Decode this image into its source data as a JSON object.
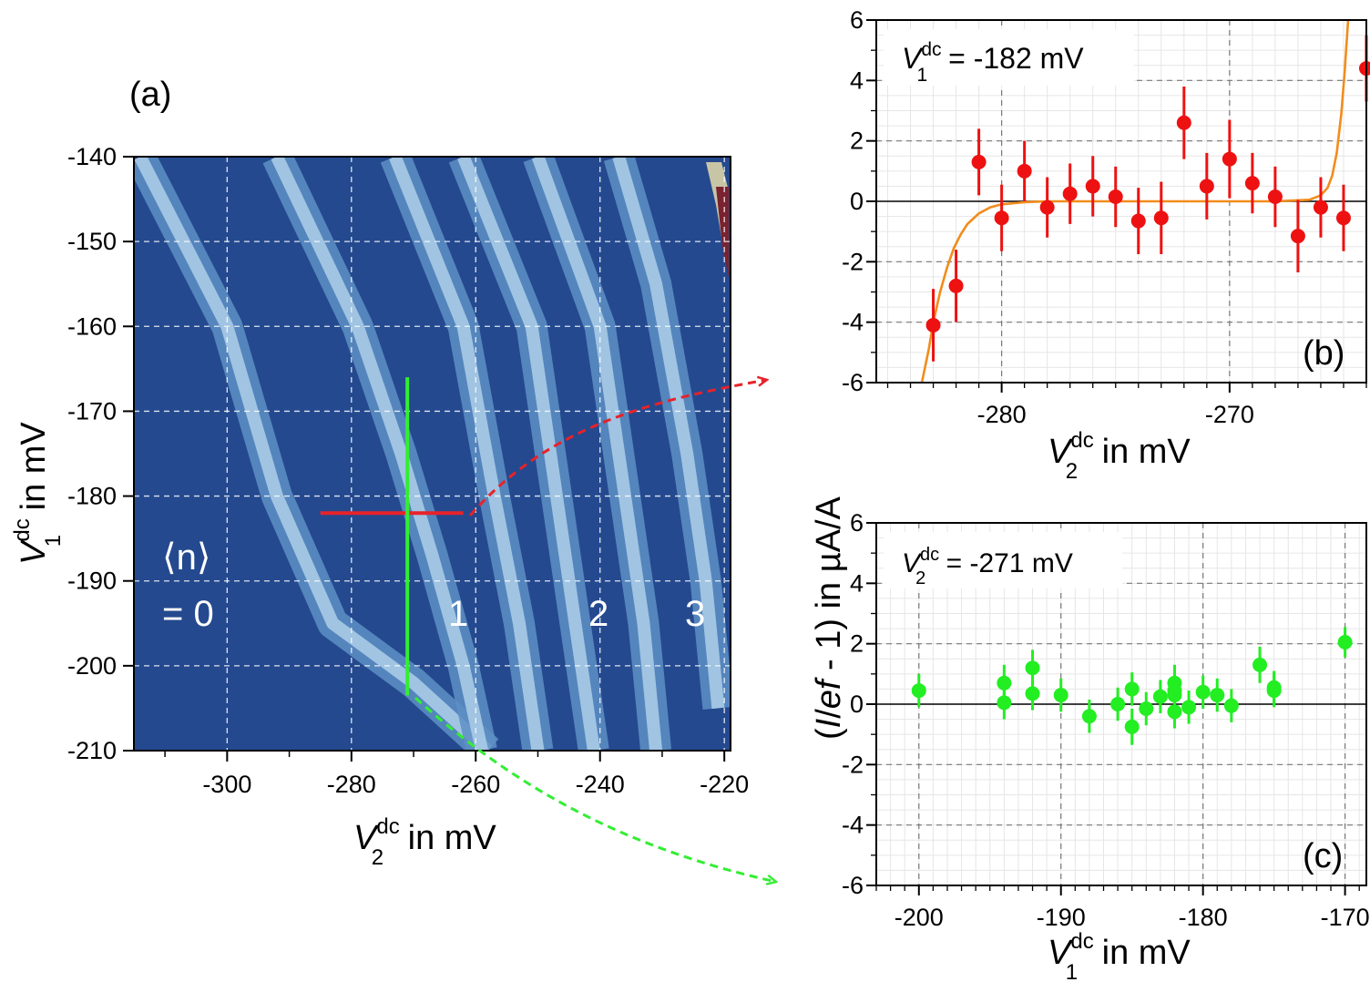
{
  "colors": {
    "map_background": "#24498f",
    "band_light": "#a9cbe6",
    "band_mid": "#5e8fc6",
    "hot_corner": "#7a2230",
    "red_cut": "#e8222a",
    "green_cut": "#33ee33",
    "red_points": "#ee1111",
    "green_points": "#22ee22",
    "fit_line": "#f28c1c"
  },
  "chart_data": [
    {
      "id": "a",
      "type": "heatmap",
      "panel_label": "(a)",
      "xlabel_main": "V",
      "xlabel_sup": "dc",
      "xlabel_sub": "2",
      "xlabel_unit": " in mV",
      "ylabel_main": "V",
      "ylabel_sup": "dc",
      "ylabel_sub": "1",
      "ylabel_unit": " in mV",
      "xlim": [
        -315,
        -219
      ],
      "ylim": [
        -210,
        -140
      ],
      "xticks": [
        -300,
        -280,
        -260,
        -240,
        -220
      ],
      "xtick_labels": [
        "-300",
        "-280",
        "-260",
        "-240",
        "-220"
      ],
      "yticks": [
        -140,
        -150,
        -160,
        -170,
        -180,
        -190,
        -200,
        -210
      ],
      "ytick_labels": [
        "-140",
        "-150",
        "-160",
        "-170",
        "-180",
        "-190",
        "-200",
        "-210"
      ],
      "grid": true,
      "bands": [
        {
          "points": [
            [
              -314,
              -140
            ],
            [
              -300,
              -160
            ],
            [
              -292,
              -180
            ],
            [
              -283,
              -195
            ],
            [
              -270,
              -202
            ],
            [
              -258,
              -210
            ]
          ]
        },
        {
          "points": [
            [
              -292,
              -140
            ],
            [
              -279,
              -160
            ],
            [
              -272,
              -175
            ],
            [
              -267,
              -187
            ],
            [
              -262,
              -200
            ],
            [
              -259,
              -210
            ]
          ]
        },
        {
          "points": [
            [
              -273,
              -140
            ],
            [
              -262,
              -160
            ],
            [
              -257,
              -180
            ],
            [
              -253,
              -195
            ],
            [
              -250,
              -210
            ]
          ]
        },
        {
          "points": [
            [
              -262,
              -140
            ],
            [
              -251,
              -160
            ],
            [
              -247,
              -180
            ],
            [
              -244,
              -195
            ],
            [
              -241,
              -210
            ]
          ]
        },
        {
          "points": [
            [
              -250,
              -140
            ],
            [
              -240,
              -160
            ],
            [
              -236,
              -180
            ],
            [
              -233,
              -195
            ],
            [
              -231,
              -210
            ]
          ]
        },
        {
          "points": [
            [
              -237,
              -140
            ],
            [
              -231,
              -155
            ],
            [
              -226,
              -175
            ],
            [
              -223,
              -190
            ],
            [
              -221,
              -205
            ]
          ]
        }
      ],
      "annotations": {
        "n_bracket": "⟨n⟩",
        "n_equals": "= 0",
        "n1": "1",
        "n2": "2",
        "n3": "3"
      },
      "cut_red": {
        "x": [
          -285,
          -262
        ],
        "y": -182
      },
      "cut_green": {
        "x": -271,
        "y": [
          -166,
          -203.5
        ]
      }
    },
    {
      "id": "b",
      "type": "scatter",
      "panel_label": "(b)",
      "legend_main": "V",
      "legend_sup": "dc",
      "legend_sub": "1",
      "legend_value": " = -182 mV",
      "xlabel_main": "V",
      "xlabel_sup": "dc",
      "xlabel_sub": "2",
      "xlabel_unit": " in mV",
      "xlim": [
        -285.5,
        -264
      ],
      "ylim": [
        -6,
        6
      ],
      "xticks": [
        -280,
        -270
      ],
      "xtick_labels": [
        "-280",
        "-270"
      ],
      "yticks": [
        -6,
        -4,
        -2,
        0,
        2,
        4,
        6
      ],
      "ytick_labels": [
        "-6",
        "-4",
        "-2",
        "0",
        "2",
        "4",
        "6"
      ],
      "grid": true,
      "x": [
        -283,
        -282,
        -281,
        -280,
        -279,
        -278,
        -277,
        -276,
        -275,
        -274,
        -273,
        -272,
        -271,
        -270,
        -269,
        -268,
        -267,
        -266,
        -265,
        -264
      ],
      "y": [
        -4.1,
        -2.8,
        1.3,
        -0.55,
        1.0,
        -0.2,
        0.25,
        0.5,
        0.15,
        -0.65,
        -0.55,
        2.6,
        0.5,
        1.4,
        0.6,
        0.15,
        -1.15,
        -0.2,
        -0.55,
        4.4
      ],
      "yerr": [
        1.2,
        1.2,
        1.1,
        1.1,
        1.0,
        1.0,
        1.0,
        1.0,
        1.0,
        1.1,
        1.2,
        1.2,
        1.1,
        1.3,
        1.0,
        1.0,
        1.2,
        1.0,
        1.1,
        1.1
      ],
      "fit_curve": {
        "x": [
          -283.5,
          -283.2,
          -283.0,
          -282.7,
          -282.4,
          -282.1,
          -281.8,
          -281.5,
          -281.0,
          -280.5,
          -280.0,
          -279.0,
          -278.0,
          -276.0,
          -272.0,
          -268.0,
          -266.5,
          -266.0,
          -265.7,
          -265.5,
          -265.3,
          -265.1,
          -264.95,
          -264.8
        ],
        "y": [
          -6.0,
          -4.9,
          -4.0,
          -3.0,
          -2.2,
          -1.55,
          -1.1,
          -0.75,
          -0.4,
          -0.2,
          -0.1,
          -0.03,
          0.0,
          0.0,
          0.0,
          0.0,
          0.05,
          0.2,
          0.45,
          0.85,
          1.6,
          2.9,
          4.3,
          6.0
        ]
      }
    },
    {
      "id": "c",
      "type": "scatter",
      "panel_label": "(c)",
      "legend_main": "V",
      "legend_sup": "dc",
      "legend_sub": "2",
      "legend_value": " = -271 mV",
      "xlabel_main": "V",
      "xlabel_sup": "dc",
      "xlabel_sub": "1",
      "xlabel_unit": " in mV",
      "xlim": [
        -203,
        -168.5
      ],
      "ylim": [
        -6,
        6
      ],
      "xticks": [
        -200,
        -190,
        -180,
        -170
      ],
      "xtick_labels": [
        "-200",
        "-190",
        "-180",
        "-170"
      ],
      "yticks": [
        -6,
        -4,
        -2,
        0,
        2,
        4,
        6
      ],
      "ytick_labels": [
        "-6",
        "-4",
        "-2",
        "0",
        "2",
        "4",
        "6"
      ],
      "grid": true,
      "x": [
        -200,
        -194,
        -194,
        -192,
        -192,
        -190,
        -188,
        -186,
        -185,
        -185,
        -184,
        -183,
        -182,
        -182,
        -182,
        -182,
        -181,
        -180,
        -179,
        -178,
        -176,
        -175,
        -175,
        -170
      ],
      "y": [
        0.45,
        0.7,
        0.05,
        1.2,
        0.35,
        0.3,
        -0.4,
        0.0,
        0.5,
        -0.75,
        -0.15,
        0.25,
        0.7,
        0.45,
        0.3,
        -0.25,
        -0.1,
        0.4,
        0.3,
        -0.05,
        1.3,
        0.55,
        0.45,
        2.05
      ],
      "yerr": [
        0.55,
        0.6,
        0.55,
        0.6,
        0.55,
        0.55,
        0.55,
        0.55,
        0.55,
        0.6,
        0.55,
        0.55,
        0.6,
        0.55,
        0.55,
        0.55,
        0.55,
        0.55,
        0.55,
        0.55,
        0.6,
        0.55,
        0.55,
        0.5
      ]
    }
  ],
  "shared_ylabel": {
    "open": "(",
    "i": "I",
    "slash": "/",
    "ef": "ef",
    "rest": " - 1) in µA/A"
  }
}
